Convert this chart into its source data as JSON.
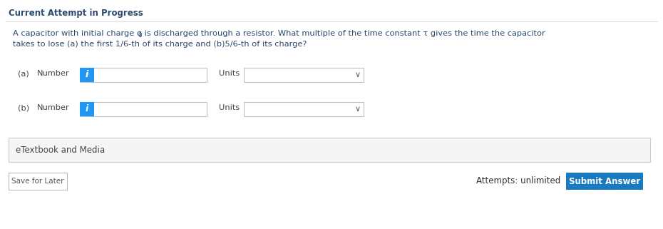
{
  "bg_color": "#ffffff",
  "outer_bg": "#f8f8f8",
  "header_text": "Current Attempt in Progress",
  "header_color": "#2c4a6e",
  "header_fontsize": 8.5,
  "question_color": "#2c4a6e",
  "question_fontsize": 8.2,
  "question_line1a": "A capacitor with initial charge q",
  "question_line1b": "0",
  "question_line1c": " is discharged through a resistor. What multiple of the time constant τ gives the time the capacitor",
  "question_line2": "takes to lose (a) the first 1/6-th of its charge and (b)5/6-th of its charge?",
  "info_btn_color": "#2196F3",
  "input_box_color": "#ffffff",
  "input_border_color": "#c0c0c0",
  "dropdown_bg": "#ffffff",
  "label_color": "#444444",
  "label_fontsize": 8.2,
  "etextbook_text": "eTextbook and Media",
  "etextbook_bg": "#f5f5f5",
  "etextbook_border": "#cccccc",
  "save_btn_text": "Save for Later",
  "save_btn_bg": "#ffffff",
  "save_btn_border": "#bbbbbb",
  "attempts_text": "Attempts: unlimited",
  "submit_text": "Submit Answer",
  "submit_bg": "#1a7abf",
  "submit_text_color": "#ffffff",
  "divider_color": "#e0e0e0"
}
